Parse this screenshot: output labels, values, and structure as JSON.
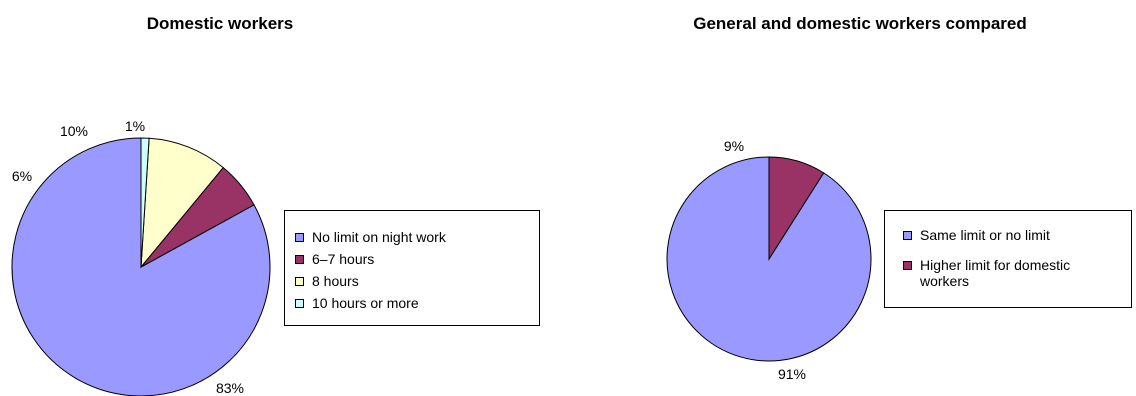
{
  "chart_data": [
    {
      "type": "pie",
      "title": "Domestic workers",
      "series": [
        {
          "name": "No limit on night work",
          "value": 83,
          "label": "83%",
          "color": "#9999ff"
        },
        {
          "name": "6–7 hours",
          "value": 6,
          "label": "6%",
          "color": "#993366"
        },
        {
          "name": "8 hours",
          "value": 10,
          "label": "10%",
          "color": "#ffffcc"
        },
        {
          "name": "10 hours or more",
          "value": 1,
          "label": "1%",
          "color": "#ccffff"
        }
      ],
      "legend_position": "right"
    },
    {
      "type": "pie",
      "title": "General and domestic workers compared",
      "series": [
        {
          "name": "Same limit or no limit",
          "value": 91,
          "label": "91%",
          "color": "#9999ff"
        },
        {
          "name": "Higher limit for domestic workers",
          "value": 9,
          "label": "9%",
          "color": "#993366"
        }
      ],
      "legend_position": "right"
    }
  ]
}
